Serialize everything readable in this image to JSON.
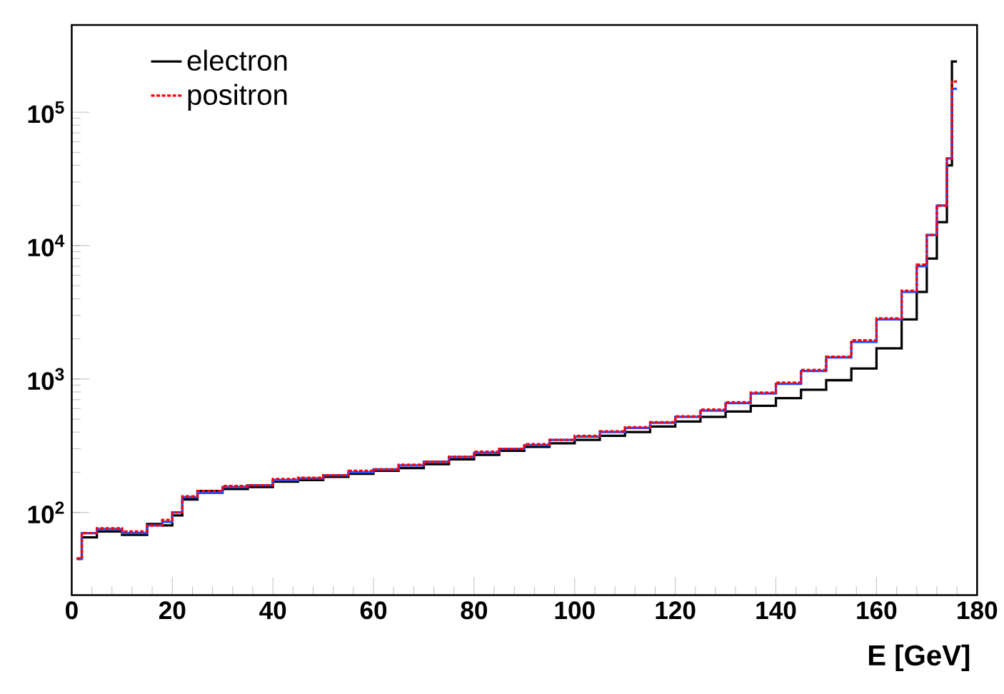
{
  "chart_data": {
    "type": "step",
    "xlabel": "E [GeV]",
    "log": "y",
    "legend": "top left",
    "grid": false,
    "xlim": [
      0,
      180
    ],
    "xticks": [
      0,
      20,
      40,
      60,
      80,
      100,
      120,
      140,
      160,
      180
    ],
    "ylim": [
      24,
      450000
    ],
    "yticks": [
      {
        "value": 100,
        "label": "10$^{2}$"
      },
      {
        "value": 1000,
        "label": "10$^{3}$"
      },
      {
        "value": 10000,
        "label": "10$^{4}$"
      },
      {
        "value": 100000,
        "label": "10$^{5}$"
      }
    ],
    "series": [
      {
        "name": "electron",
        "color": "#000000",
        "line_style": "solid",
        "x": [
          1,
          2,
          5,
          10,
          15,
          18,
          20,
          22,
          25,
          30,
          35,
          40,
          45,
          50,
          55,
          60,
          65,
          70,
          75,
          80,
          85,
          90,
          95,
          100,
          105,
          110,
          115,
          120,
          125,
          130,
          135,
          140,
          145,
          150,
          155,
          160,
          165,
          168,
          170,
          172,
          174,
          175,
          176
        ],
        "values": [
          45,
          65,
          72,
          68,
          82,
          80,
          95,
          125,
          145,
          150,
          155,
          170,
          175,
          185,
          195,
          205,
          215,
          230,
          250,
          270,
          290,
          310,
          330,
          350,
          375,
          400,
          440,
          480,
          520,
          570,
          630,
          720,
          830,
          980,
          1200,
          1700,
          2800,
          4500,
          8000,
          15000,
          40000,
          240000,
          240000
        ]
      },
      {
        "color": "#1f4fff",
        "line_style": "solid",
        "x": [
          1,
          2,
          5,
          10,
          15,
          18,
          20,
          22,
          25,
          30,
          35,
          40,
          45,
          50,
          55,
          60,
          65,
          70,
          75,
          80,
          85,
          90,
          95,
          100,
          105,
          110,
          115,
          120,
          125,
          130,
          135,
          140,
          145,
          150,
          155,
          160,
          165,
          168,
          170,
          172,
          174,
          175,
          176
        ],
        "values": [
          45,
          70,
          75,
          70,
          80,
          85,
          100,
          130,
          140,
          155,
          160,
          175,
          180,
          190,
          200,
          210,
          225,
          240,
          260,
          280,
          300,
          320,
          350,
          370,
          400,
          430,
          470,
          520,
          580,
          660,
          780,
          920,
          1150,
          1450,
          1900,
          2800,
          4500,
          7000,
          12000,
          20000,
          45000,
          150000,
          150000
        ]
      },
      {
        "name": "positron",
        "color": "#ff0000",
        "line_style": "dashed",
        "x": [
          1,
          2,
          5,
          10,
          15,
          18,
          20,
          22,
          25,
          30,
          35,
          40,
          45,
          50,
          55,
          60,
          65,
          70,
          75,
          80,
          85,
          90,
          95,
          100,
          105,
          110,
          115,
          120,
          125,
          130,
          135,
          140,
          145,
          150,
          155,
          160,
          165,
          168,
          170,
          172,
          174,
          175,
          176
        ],
        "values": [
          45,
          70,
          76,
          72,
          80,
          88,
          100,
          132,
          145,
          158,
          160,
          178,
          182,
          190,
          205,
          210,
          228,
          240,
          262,
          285,
          300,
          325,
          350,
          375,
          405,
          435,
          475,
          525,
          590,
          670,
          790,
          940,
          1170,
          1470,
          1950,
          2850,
          4600,
          7200,
          12000,
          20000,
          45000,
          170000,
          170000
        ]
      }
    ]
  }
}
